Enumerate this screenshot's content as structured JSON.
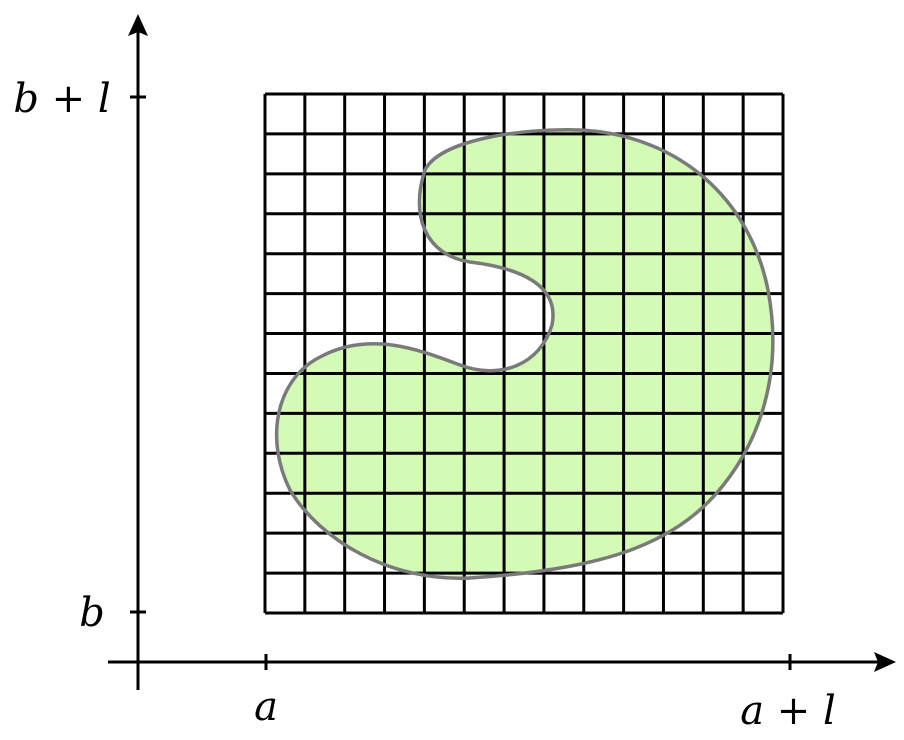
{
  "labels": {
    "x_start": "a",
    "x_end": "a + l",
    "y_start": "b",
    "y_end": "b + l"
  },
  "grid": {
    "rows": 13,
    "cols": 13
  },
  "colors": {
    "region_fill": "#d4fbb6",
    "region_stroke": "#7a7a7a",
    "grid_lines": "#000000",
    "axes": "#000000"
  }
}
